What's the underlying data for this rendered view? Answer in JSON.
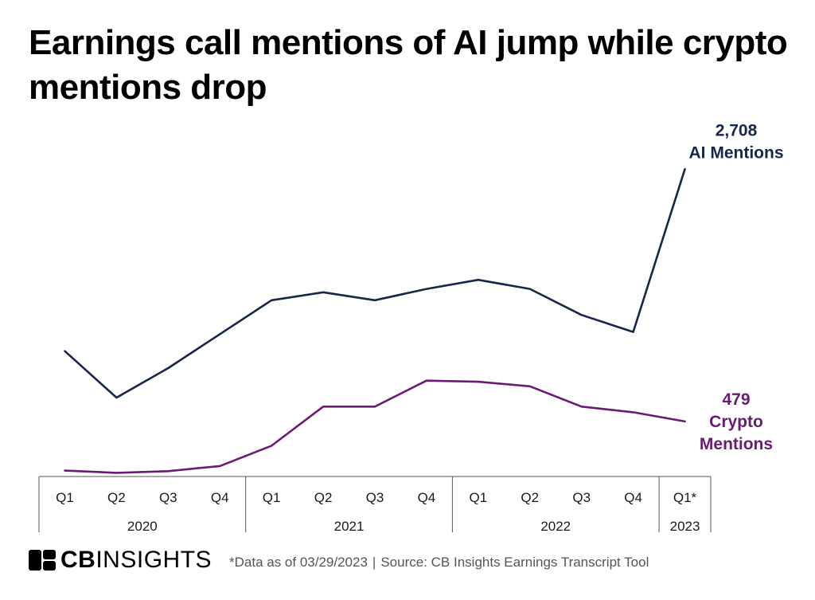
{
  "title": "Earnings call mentions of AI jump while crypto mentions drop",
  "chart_data": {
    "type": "line",
    "title": "Earnings call mentions of AI jump while crypto mentions drop",
    "categories": [
      "Q1",
      "Q2",
      "Q3",
      "Q4",
      "Q1",
      "Q2",
      "Q3",
      "Q4",
      "Q1",
      "Q2",
      "Q3",
      "Q4",
      "Q1*"
    ],
    "years": [
      {
        "label": "2020",
        "start": 0,
        "end": 3
      },
      {
        "label": "2021",
        "start": 4,
        "end": 7
      },
      {
        "label": "2022",
        "start": 8,
        "end": 11
      },
      {
        "label": "2023",
        "start": 12,
        "end": 12
      }
    ],
    "ylim": [
      0,
      2900
    ],
    "series": [
      {
        "name": "AI Mentions",
        "color": "#172649",
        "end_value_label": "2,708",
        "end_name_lines": [
          "AI Mentions"
        ],
        "values": [
          1100,
          690,
          950,
          1250,
          1550,
          1620,
          1550,
          1650,
          1730,
          1650,
          1420,
          1270,
          2708
        ]
      },
      {
        "name": "Crypto Mentions",
        "color": "#6a1b73",
        "end_value_label": "479",
        "end_name_lines": [
          "Crypto",
          "Mentions"
        ],
        "values": [
          45,
          25,
          40,
          85,
          265,
          610,
          610,
          840,
          830,
          790,
          610,
          560,
          479
        ]
      }
    ]
  },
  "footer": {
    "logo_bold": "CB",
    "logo_light": "INSIGHTS",
    "note": "*Data as of 03/29/2023",
    "separator": "|",
    "source": "Source: CB Insights Earnings Transcript Tool"
  }
}
